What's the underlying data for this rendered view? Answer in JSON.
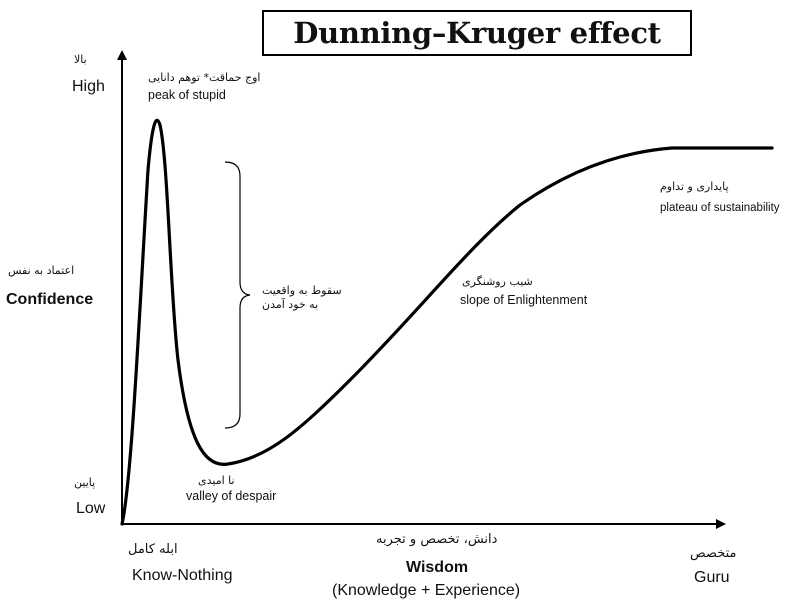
{
  "title": "Dunning–Kruger effect",
  "y_axis": {
    "label_fa": "اعتماد به نفس",
    "label_en": "Confidence",
    "high_fa": "بالا",
    "high_en": "High",
    "low_fa": "پایین",
    "low_en": "Low"
  },
  "x_axis": {
    "label_fa": "دانش، تخصص و تجربه",
    "label_en": "Wisdom",
    "sublabel_en": "(Knowledge + Experience)",
    "left_fa": "ابله کامل",
    "left_en": "Know-Nothing",
    "right_fa": "متخصص",
    "right_en": "Guru"
  },
  "annotations": {
    "peak_fa": "اوج حماقت* توهم دانایی",
    "peak_en": "peak of stupid",
    "fall_fa_line1": "سقوط به واقعیت",
    "fall_fa_line2": "به خود آمدن",
    "valley_fa": "نا امیدی",
    "valley_en": "valley of despair",
    "slope_fa": "شیب روشنگری",
    "slope_en": "slope of Enlightenment",
    "plateau_fa": "پایداری و تداوم",
    "plateau_en": "plateau of sustainability"
  },
  "colors": {
    "ink": "#000000",
    "background": "#ffffff"
  }
}
